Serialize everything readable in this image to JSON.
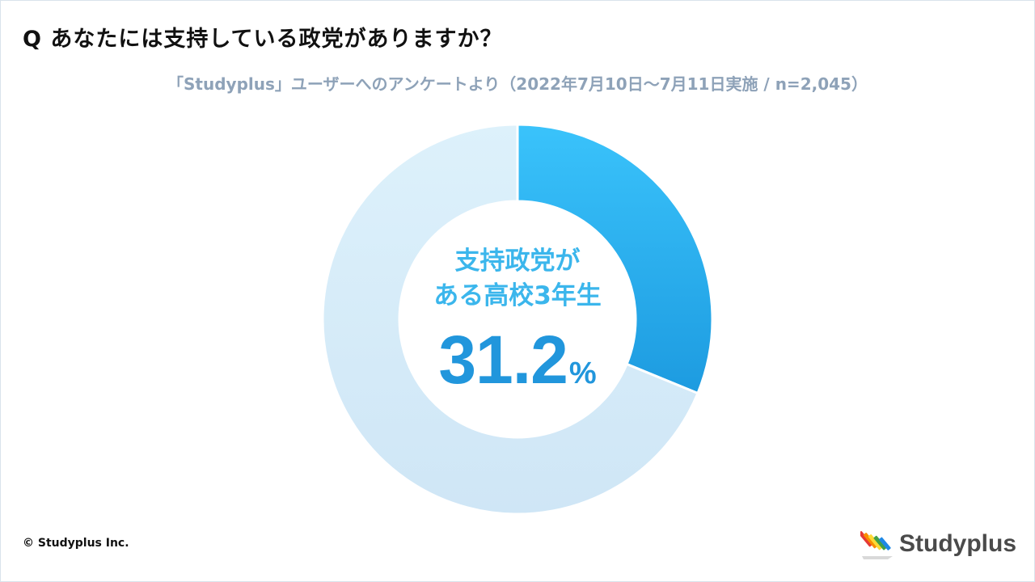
{
  "header": {
    "question": "Q あなたには支持している政党がありますか？",
    "subtitle": "「Studyplus」ユーザーへのアンケートより（2022年7月10日〜7月11日実施 / n=2,045）"
  },
  "chart_data": {
    "type": "pie",
    "donut": true,
    "slices": [
      {
        "label": "支持政党がある高校3年生",
        "value": 31.2,
        "color": "#2fb3ee"
      },
      {
        "label": "",
        "value": 68.8,
        "color": "#d6ecf8"
      }
    ],
    "center_text_line1": "支持政党が",
    "center_text_line2": "ある高校3年生",
    "center_value": "31.2",
    "center_unit": "%"
  },
  "footer": {
    "copyright": "© Studyplus Inc.",
    "logo_text": "Studyplus"
  },
  "colors": {
    "highlight_top": "#3ac3fb",
    "highlight_bottom": "#1d9be0",
    "remainder_top": "#ddf1fb",
    "remainder_bottom": "#cfe6f6",
    "center_text": "#3bb6ec",
    "center_value": "#2196dc"
  }
}
